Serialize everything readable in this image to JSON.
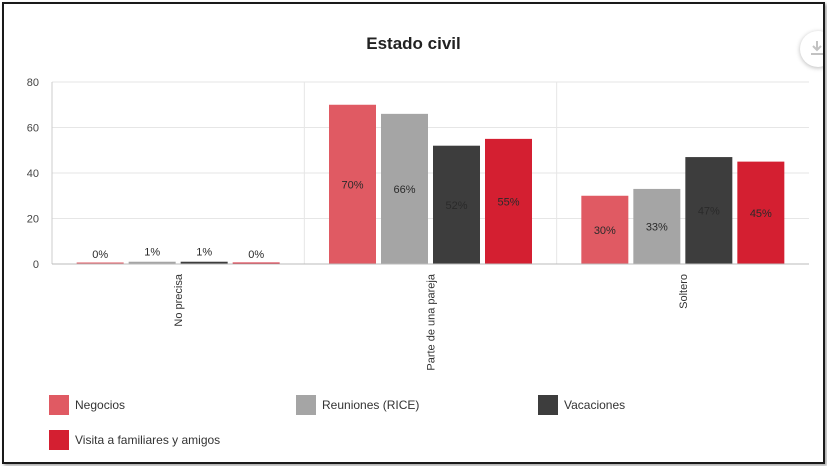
{
  "toolbar": {
    "download_icon": "download-icon"
  },
  "chart_data": {
    "type": "bar",
    "title": "Estado civil",
    "categories": [
      "No precisa",
      "Parte de una pareja",
      "Soltero"
    ],
    "series": [
      {
        "name": "Negocios",
        "color": "#e05a63",
        "values": [
          0,
          70,
          30
        ],
        "labels": [
          "0%",
          "70%",
          "30%"
        ]
      },
      {
        "name": "Reuniones (RICE)",
        "color": "#a5a5a5",
        "values": [
          1,
          66,
          33
        ],
        "labels": [
          "1%",
          "66%",
          "33%"
        ]
      },
      {
        "name": "Vacaciones",
        "color": "#3d3d3d",
        "values": [
          1,
          52,
          47
        ],
        "labels": [
          "1%",
          "52%",
          "47%"
        ]
      },
      {
        "name": "Visita a familiares y amigos",
        "color": "#d41f31",
        "values": [
          0,
          55,
          45
        ],
        "labels": [
          "0%",
          "55%",
          "45%"
        ]
      }
    ],
    "yticks": [
      0,
      20,
      40,
      60,
      80
    ],
    "ylim": [
      0,
      80
    ],
    "grid": true,
    "legend_position": "bottom"
  }
}
